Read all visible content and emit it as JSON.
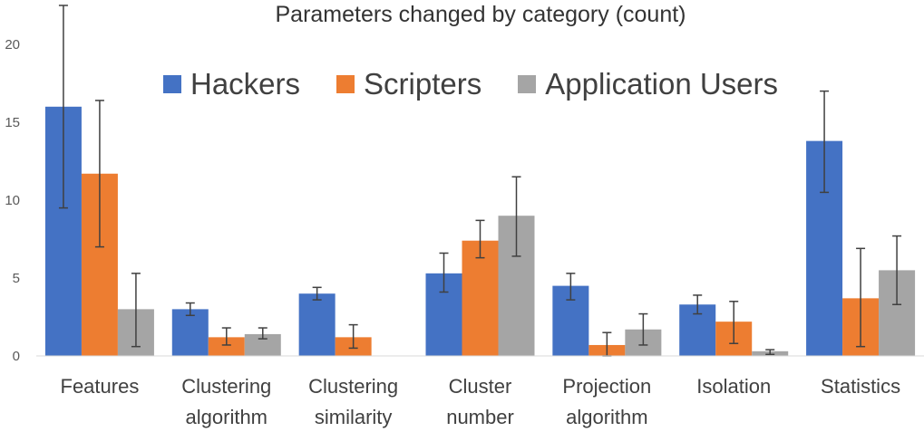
{
  "chart_data": {
    "type": "bar",
    "title": "Parameters changed by category (count)",
    "categories": [
      [
        "Features"
      ],
      [
        "Clustering",
        "algorithm"
      ],
      [
        "Clustering",
        "similarity"
      ],
      [
        "Cluster",
        "number"
      ],
      [
        "Projection",
        "algorithm"
      ],
      [
        "Isolation"
      ],
      [
        "Statistics"
      ]
    ],
    "series": [
      {
        "name": "Hackers",
        "color": "#4472C4",
        "values": [
          16.0,
          3.0,
          4.0,
          5.3,
          4.5,
          3.3,
          13.8
        ],
        "error": [
          [
            9.5,
            22.5
          ],
          [
            2.6,
            3.4
          ],
          [
            3.6,
            4.4
          ],
          [
            4.1,
            6.6
          ],
          [
            3.6,
            5.3
          ],
          [
            2.7,
            3.9
          ],
          [
            10.5,
            17.0
          ]
        ]
      },
      {
        "name": "Scripters",
        "color": "#ED7D31",
        "values": [
          11.7,
          1.2,
          1.2,
          7.4,
          0.7,
          2.2,
          3.7
        ],
        "error": [
          [
            7.0,
            16.4
          ],
          [
            0.7,
            1.8
          ],
          [
            0.5,
            2.0
          ],
          [
            6.3,
            8.7
          ],
          [
            0.0,
            1.5
          ],
          [
            0.8,
            3.5
          ],
          [
            0.6,
            6.9
          ]
        ]
      },
      {
        "name": "Application Users",
        "color": "#A5A5A5",
        "values": [
          3.0,
          1.4,
          0.0,
          9.0,
          1.7,
          0.3,
          5.5
        ],
        "error": [
          [
            0.6,
            5.3
          ],
          [
            1.1,
            1.8
          ],
          null,
          [
            6.4,
            11.5
          ],
          [
            0.7,
            2.7
          ],
          [
            0.1,
            0.4
          ],
          [
            3.3,
            7.7
          ]
        ]
      }
    ],
    "ylim": [
      0,
      22.5
    ],
    "yticks": [
      "0",
      "5",
      "10",
      "15",
      "20"
    ],
    "ytick_values": [
      0,
      5,
      10,
      15,
      20
    ],
    "legend_position": "top",
    "grid": false
  }
}
